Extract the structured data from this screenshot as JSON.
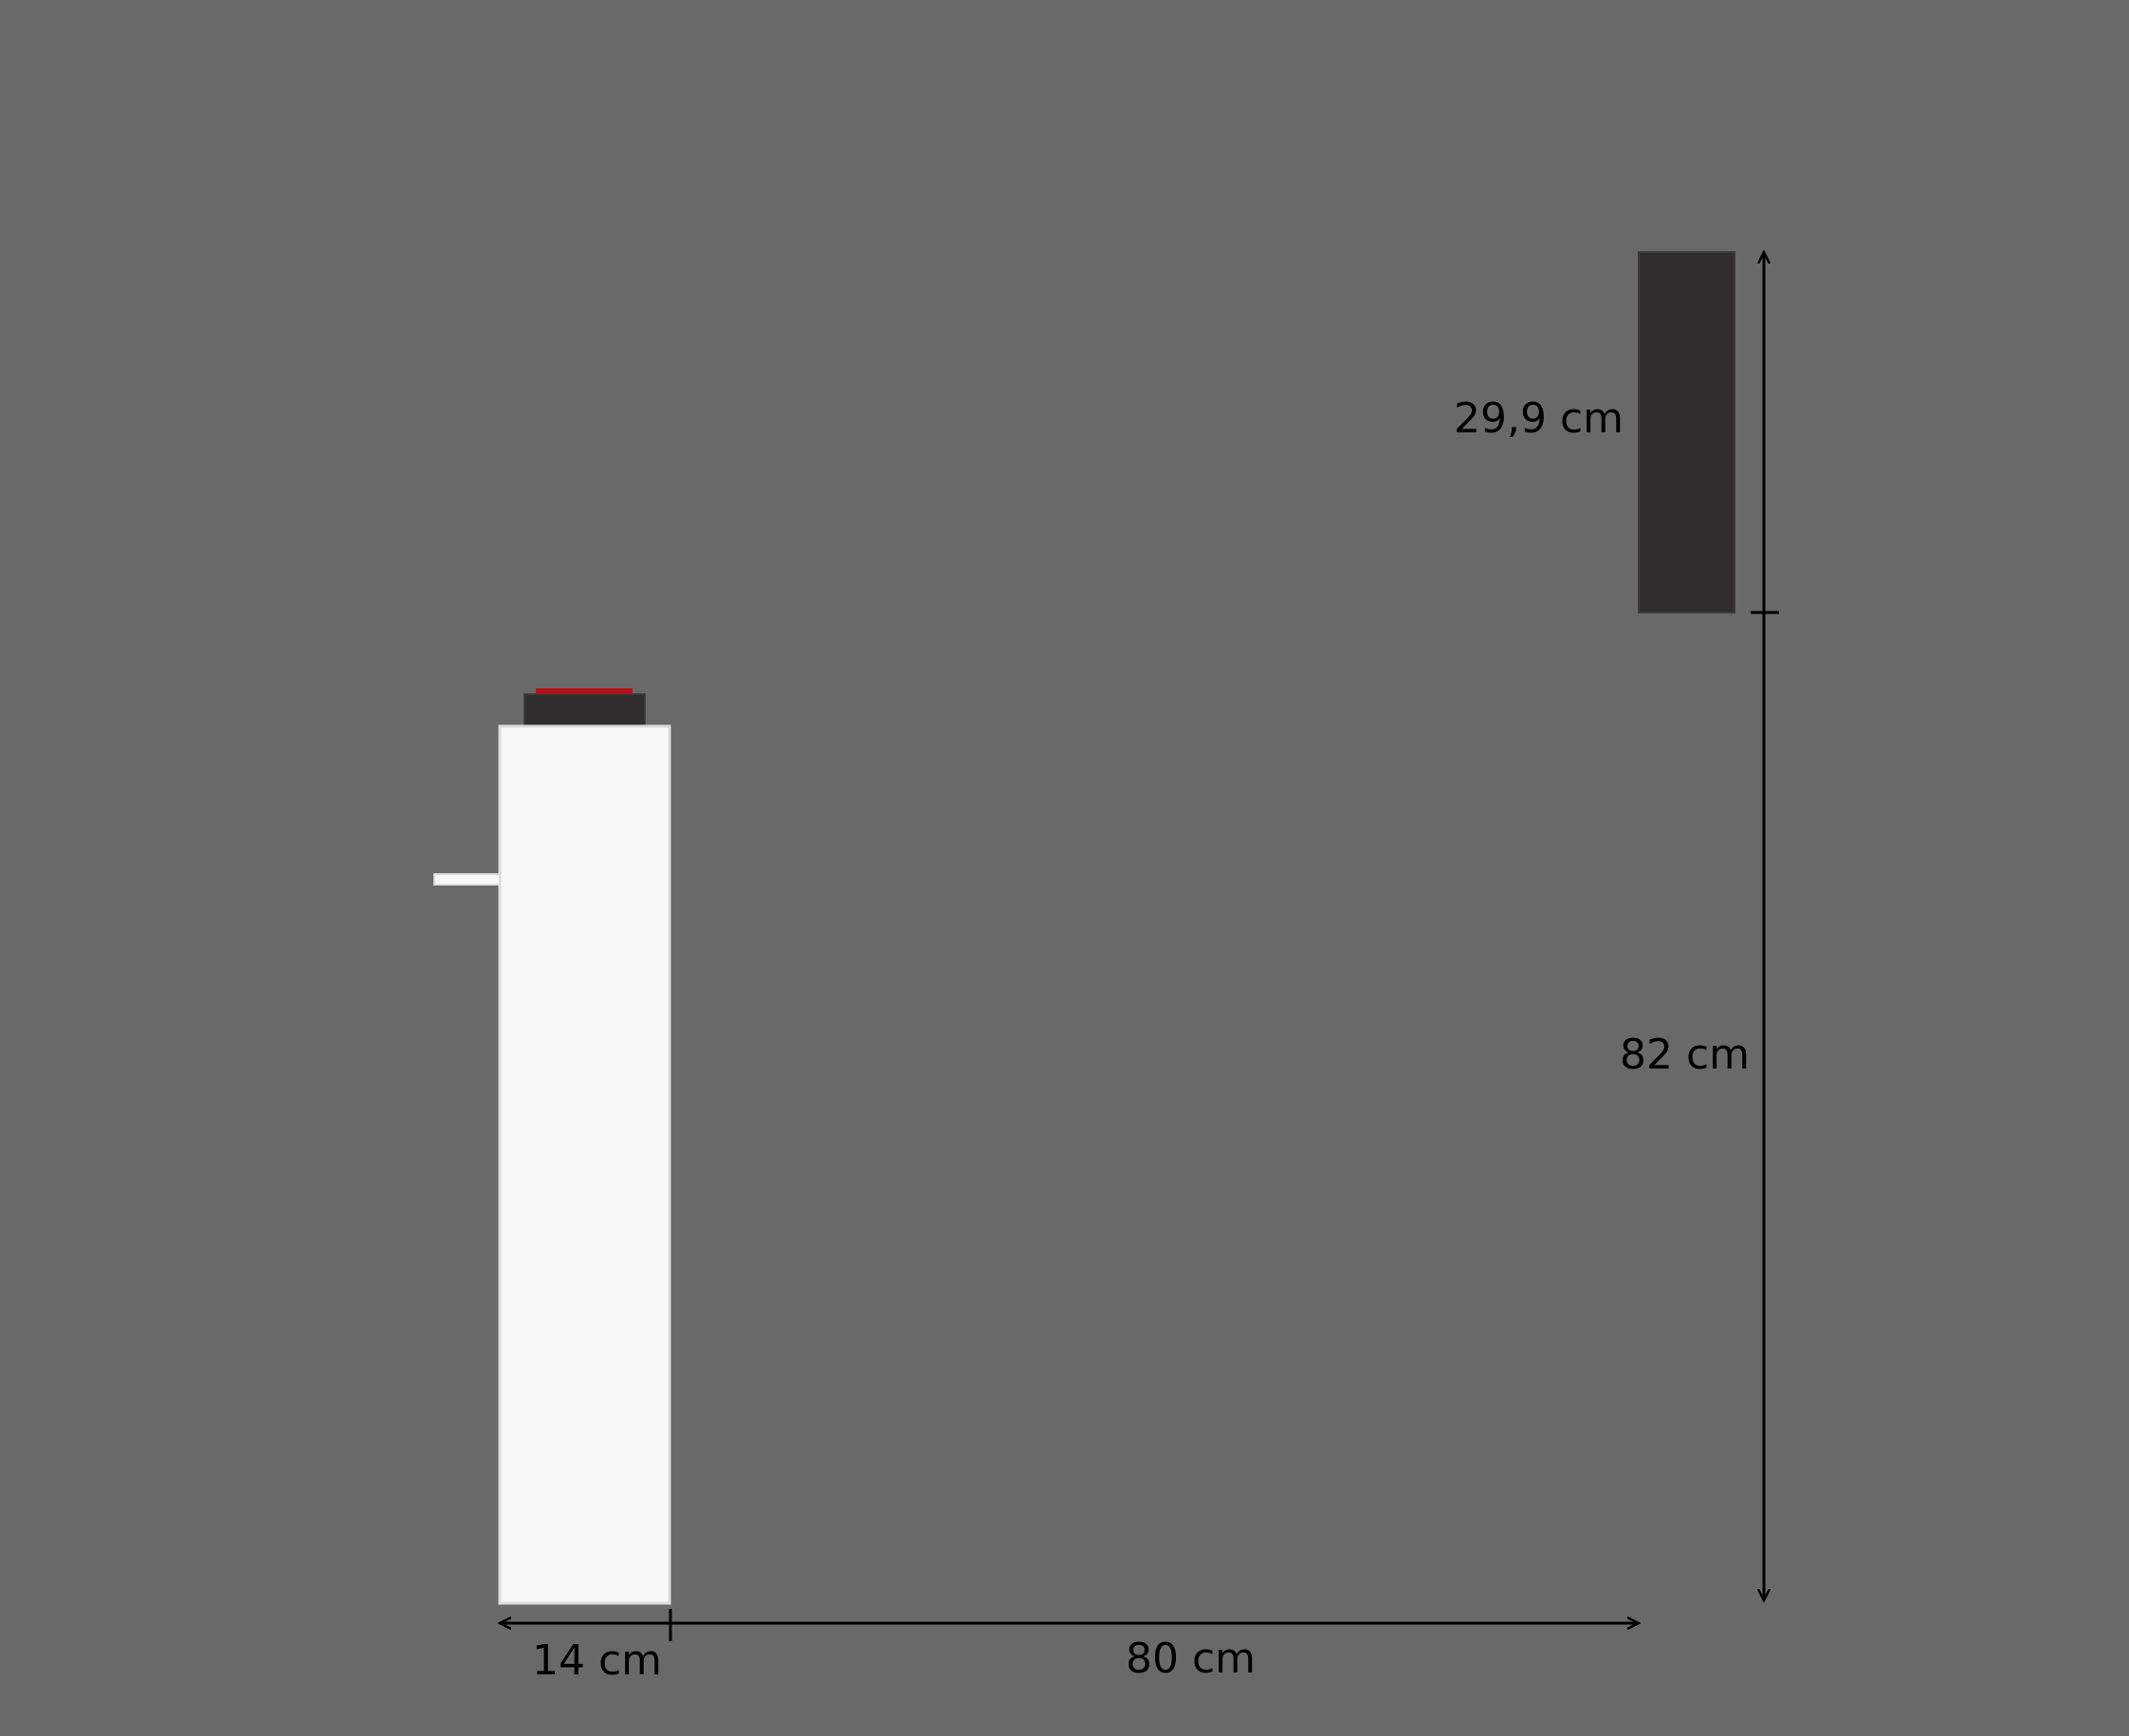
{
  "diagram": {
    "dimensions": {
      "depth_label": "14 cm",
      "distance_label": "80 cm",
      "height_label": "82 cm",
      "device_height_label": "29,9 cm"
    },
    "colors": {
      "background": "#696969",
      "cabinet": "#f7f7f7",
      "dark_unit": "#2f2d2d",
      "accent_red": "#b0121a",
      "dimension_lines": "#000000"
    }
  }
}
